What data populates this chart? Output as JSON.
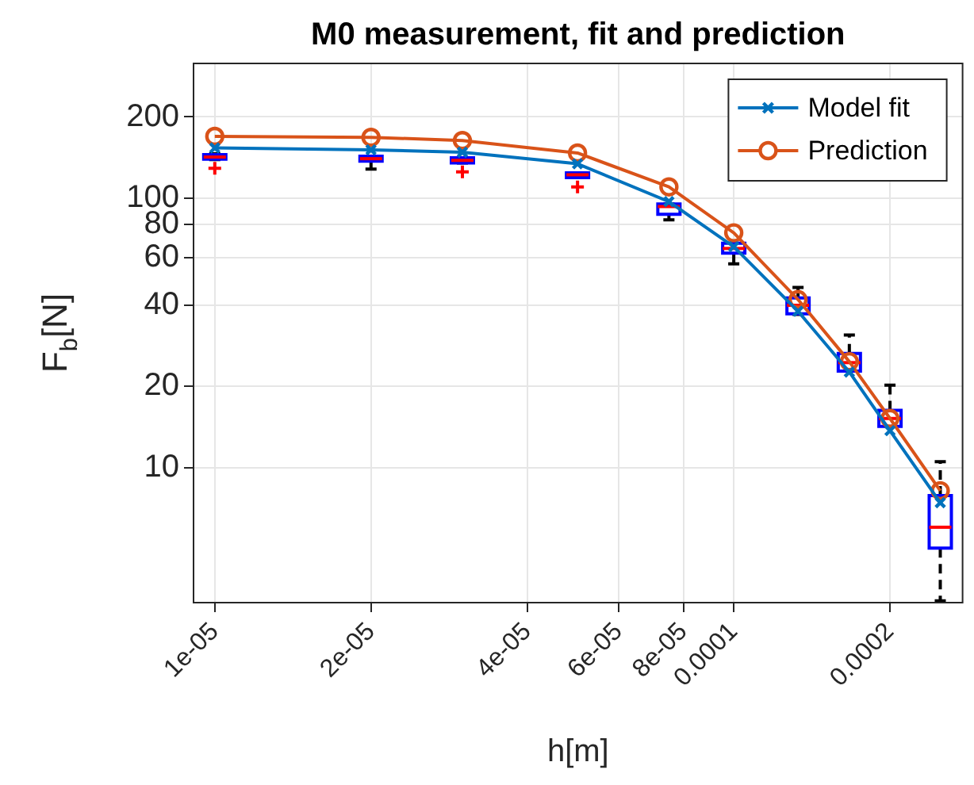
{
  "chart_data": {
    "type": "line",
    "title": "M0 measurement, fit and prediction",
    "xlabel": "h[m]",
    "ylabel": "F$_{b}$[N]",
    "log": "xy",
    "grid": true,
    "legend": "top right",
    "xlim": [
      9.1e-06,
      0.000276
    ],
    "ylim": [
      3.15,
      316
    ],
    "xticks": [
      {
        "value": 1e-05,
        "label": "1e-05"
      },
      {
        "value": 2e-05,
        "label": "2e-05"
      },
      {
        "value": 4e-05,
        "label": "4e-05"
      },
      {
        "value": 6e-05,
        "label": "6e-05"
      },
      {
        "value": 8e-05,
        "label": "8e-05"
      },
      0.0001,
      0.0002
    ],
    "yticks": [
      10,
      20,
      40,
      60,
      80,
      100,
      200
    ],
    "x": [
      1e-05,
      2e-05,
      3e-05,
      5e-05,
      7.5e-05,
      0.0001,
      0.000133,
      0.000167,
      0.0002,
      0.00025
    ],
    "series": [
      {
        "type": "box",
        "color": "#0000ff",
        "boxes": [
          {
            "low": 139,
            "q1": 139.5,
            "median": 142,
            "q3": 145,
            "high": 146,
            "outliers": [
              129
            ]
          },
          {
            "low": 128,
            "q1": 137,
            "median": 140,
            "q3": 143,
            "high": 143
          },
          {
            "low": 135,
            "q1": 135,
            "median": 138,
            "q3": 141,
            "high": 141,
            "outliers": [
              125
            ]
          },
          {
            "low": 119,
            "q1": 119,
            "median": 122,
            "q3": 124,
            "high": 124,
            "outliers": [
              110
            ]
          },
          {
            "low": 83,
            "q1": 87,
            "median": 93,
            "q3": 95,
            "high": 95
          },
          {
            "low": 57,
            "q1": 62.5,
            "median": 65,
            "q3": 68,
            "high": 68
          },
          {
            "low": 37,
            "q1": 37.2,
            "median": 40,
            "q3": 42.6,
            "high": 46.6
          },
          {
            "low": 22.8,
            "q1": 22.8,
            "median": 24.5,
            "q3": 26.5,
            "high": 31
          },
          {
            "low": 14.2,
            "q1": 14.2,
            "median": 15.2,
            "q3": 16.3,
            "high": 20.2
          },
          {
            "low": 3.2,
            "q1": 5.02,
            "median": 6,
            "q3": 7.86,
            "high": 10.5
          }
        ]
      },
      {
        "type": "line",
        "name": "Model fit",
        "color": "#0072bd",
        "marker": "cross",
        "values": [
          153.5,
          151,
          148,
          134,
          97,
          66,
          38,
          22.6,
          13.7,
          7.4
        ]
      },
      {
        "type": "line",
        "name": "Prediction",
        "color": "#d95319",
        "marker": "circle",
        "values": [
          169.4,
          168,
          163.5,
          147,
          110,
          74.3,
          42,
          24.7,
          15.2,
          8.2
        ]
      }
    ]
  }
}
